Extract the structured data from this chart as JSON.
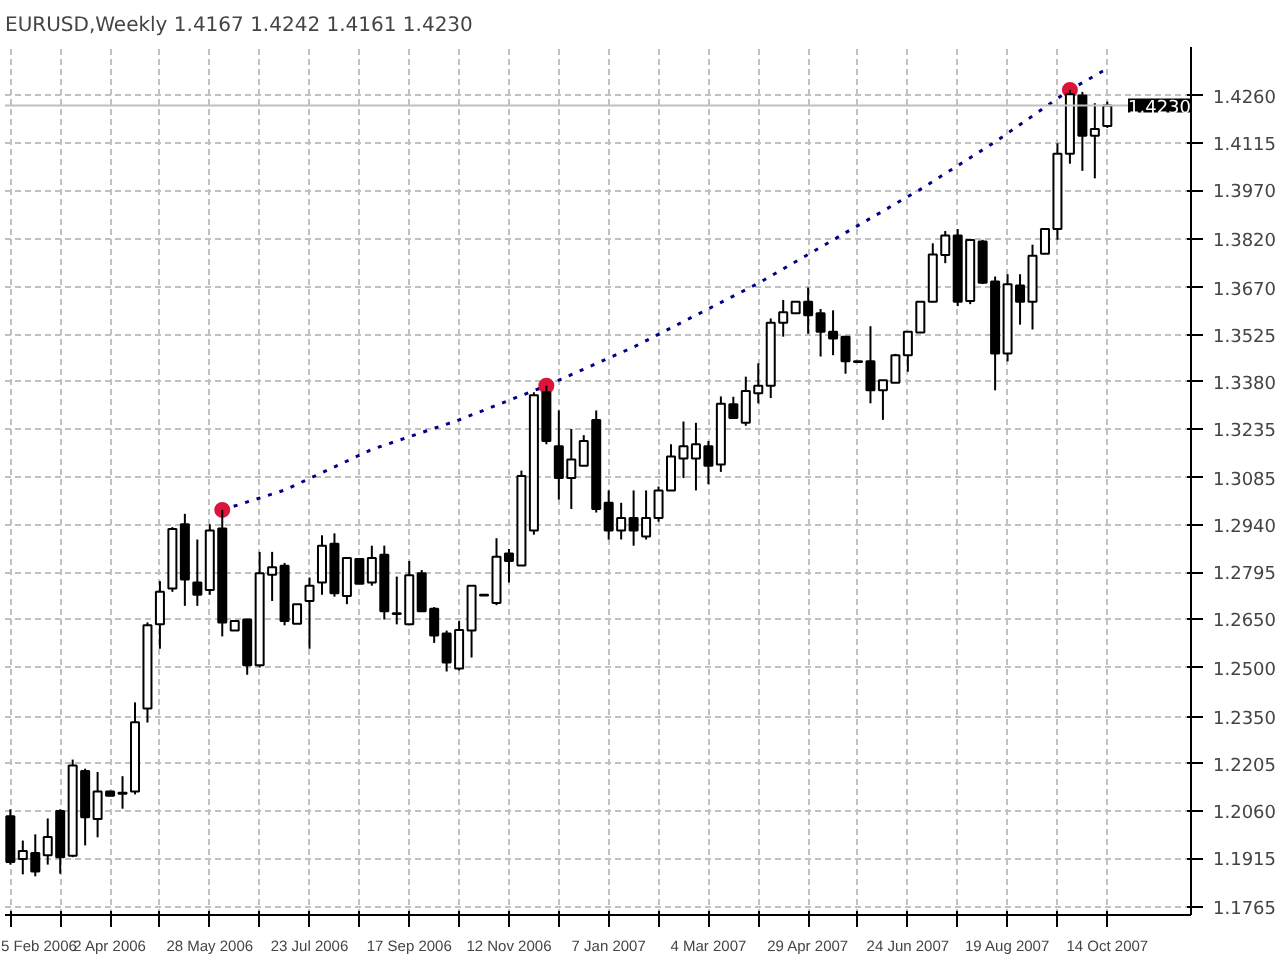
{
  "chart_data": {
    "type": "candlestick",
    "title": "EURUSD,Weekly  1.4167 1.4242 1.4161 1.4230",
    "xlim": [
      "2006-02-02",
      "2007-11-30"
    ],
    "xticks": [
      {
        "value": "2006-02-05",
        "label": "5 Feb 2006"
      },
      {
        "value": "2006-03-05",
        "label": null
      },
      {
        "value": "2006-04-02",
        "label": "2 Apr 2006"
      },
      {
        "value": "2006-04-30",
        "label": null
      },
      {
        "value": "2006-05-28",
        "label": "28 May 2006"
      },
      {
        "value": "2006-06-25",
        "label": null
      },
      {
        "value": "2006-07-23",
        "label": "23 Jul 2006"
      },
      {
        "value": "2006-08-20",
        "label": null
      },
      {
        "value": "2006-09-17",
        "label": "17 Sep 2006"
      },
      {
        "value": "2006-10-15",
        "label": null
      },
      {
        "value": "2006-11-12",
        "label": "12 Nov 2006"
      },
      {
        "value": "2006-12-10",
        "label": null
      },
      {
        "value": "2007-01-07",
        "label": "7 Jan 2007"
      },
      {
        "value": "2007-02-04",
        "label": null
      },
      {
        "value": "2007-03-04",
        "label": "4 Mar 2007"
      },
      {
        "value": "2007-04-01",
        "label": null
      },
      {
        "value": "2007-04-29",
        "label": "29 Apr 2007"
      },
      {
        "value": "2007-05-27",
        "label": null
      },
      {
        "value": "2007-06-24",
        "label": "24 Jun 2007"
      },
      {
        "value": "2007-07-22",
        "label": null
      },
      {
        "value": "2007-08-19",
        "label": "19 Aug 2007"
      },
      {
        "value": "2007-09-16",
        "label": null
      },
      {
        "value": "2007-10-14",
        "label": "14 Oct 2007"
      }
    ],
    "ylim": [
      1.174,
      1.441
    ],
    "yticks": [
      1.1765,
      1.1915,
      {
        "value": 1.206,
        "label": "1.2060"
      },
      1.2205,
      {
        "value": 1.235,
        "label": "1.2350"
      },
      {
        "value": 1.25,
        "label": "1.2500"
      },
      {
        "value": 1.265,
        "label": "1.2650"
      },
      1.2795,
      {
        "value": 1.294,
        "label": "1.2940"
      },
      1.3085,
      1.3235,
      {
        "value": 1.338,
        "label": "1.3380"
      },
      1.3525,
      {
        "value": 1.367,
        "label": "1.3670"
      },
      {
        "value": 1.382,
        "label": "1.3820"
      },
      {
        "value": 1.397,
        "label": "1.3970"
      },
      1.4115,
      {
        "value": 1.426,
        "label": "1.4260"
      }
    ],
    "grid": true,
    "ref_lines": [
      {
        "axis": "y",
        "value": 1.423,
        "label": "1.4230",
        "color": "#c0c0c0"
      }
    ],
    "series": [
      {
        "type": "candlestick",
        "color": "#000000",
        "x": [
          "2006-02-05",
          "2006-02-12",
          "2006-02-19",
          "2006-02-26",
          "2006-03-05",
          "2006-03-12",
          "2006-03-19",
          "2006-03-26",
          "2006-04-02",
          "2006-04-09",
          "2006-04-16",
          "2006-04-23",
          "2006-04-30",
          "2006-05-07",
          "2006-05-14",
          "2006-05-21",
          "2006-05-28",
          "2006-06-04",
          "2006-06-11",
          "2006-06-18",
          "2006-06-25",
          "2006-07-02",
          "2006-07-09",
          "2006-07-16",
          "2006-07-23",
          "2006-07-30",
          "2006-08-06",
          "2006-08-13",
          "2006-08-20",
          "2006-08-27",
          "2006-09-03",
          "2006-09-10",
          "2006-09-17",
          "2006-09-24",
          "2006-10-01",
          "2006-10-08",
          "2006-10-15",
          "2006-10-22",
          "2006-10-29",
          "2006-11-05",
          "2006-11-12",
          "2006-11-19",
          "2006-11-26",
          "2006-12-03",
          "2006-12-10",
          "2006-12-17",
          "2006-12-24",
          "2006-12-31",
          "2007-01-07",
          "2007-01-14",
          "2007-01-21",
          "2007-01-28",
          "2007-02-04",
          "2007-02-11",
          "2007-02-18",
          "2007-02-25",
          "2007-03-04",
          "2007-03-11",
          "2007-03-18",
          "2007-03-25",
          "2007-04-01",
          "2007-04-08",
          "2007-04-15",
          "2007-04-22",
          "2007-04-29",
          "2007-05-06",
          "2007-05-13",
          "2007-05-20",
          "2007-05-27",
          "2007-06-03",
          "2007-06-10",
          "2007-06-17",
          "2007-06-24",
          "2007-07-01",
          "2007-07-08",
          "2007-07-15",
          "2007-07-22",
          "2007-07-29",
          "2007-08-05",
          "2007-08-12",
          "2007-08-19",
          "2007-08-26",
          "2007-09-02",
          "2007-09-09",
          "2007-09-16",
          "2007-09-23",
          "2007-09-30",
          "2007-10-07",
          "2007-10-14"
        ],
        "ohlc": [
          [
            1.2044,
            1.2065,
            1.1895,
            1.1903
          ],
          [
            1.1912,
            1.1969,
            1.1865,
            1.1937
          ],
          [
            1.1931,
            1.1988,
            1.1859,
            1.1874
          ],
          [
            1.1924,
            1.2037,
            1.1895,
            1.198
          ],
          [
            1.206,
            1.2065,
            1.1867,
            1.1918
          ],
          [
            1.1922,
            1.2218,
            1.1918,
            1.22
          ],
          [
            1.2183,
            1.219,
            1.1954,
            1.2041
          ],
          [
            1.2035,
            1.218,
            1.1979,
            1.212
          ],
          [
            1.212,
            1.2122,
            1.2105,
            1.2107
          ],
          [
            1.2116,
            1.2167,
            1.2067,
            1.2113
          ],
          [
            1.212,
            1.2394,
            1.2111,
            1.2333
          ],
          [
            1.2375,
            1.264,
            1.2332,
            1.2631
          ],
          [
            1.2634,
            1.2767,
            1.2559,
            1.2734
          ],
          [
            1.2744,
            1.2933,
            1.2734,
            1.2927
          ],
          [
            1.2942,
            1.2974,
            1.2691,
            1.2772
          ],
          [
            1.2763,
            1.2895,
            1.2691,
            1.2725
          ],
          [
            1.274,
            1.2942,
            1.2725,
            1.2923
          ],
          [
            1.2929,
            1.2986,
            1.2597,
            1.264
          ],
          [
            1.2615,
            1.2644,
            1.2615,
            1.2644
          ],
          [
            1.2649,
            1.2649,
            1.2479,
            1.2508
          ],
          [
            1.2508,
            1.2857,
            1.2502,
            1.2791
          ],
          [
            1.2787,
            1.2857,
            1.2706,
            1.281
          ],
          [
            1.2814,
            1.2823,
            1.2631,
            1.2644
          ],
          [
            1.2636,
            1.2696,
            1.2636,
            1.2696
          ],
          [
            1.2706,
            1.2778,
            1.2559,
            1.2753
          ],
          [
            1.2763,
            1.2908,
            1.2725,
            1.2876
          ],
          [
            1.2882,
            1.2914,
            1.2719,
            1.273
          ],
          [
            1.2721,
            1.2838,
            1.2696,
            1.2838
          ],
          [
            1.2835,
            1.2835,
            1.2759,
            1.2759
          ],
          [
            1.2763,
            1.2876,
            1.2753,
            1.2838
          ],
          [
            1.2848,
            1.2876,
            1.2649,
            1.2674
          ],
          [
            1.2668,
            1.2781,
            1.2634,
            1.2666
          ],
          [
            1.2634,
            1.2829,
            1.2631,
            1.2785
          ],
          [
            1.2791,
            1.2801,
            1.2674,
            1.2674
          ],
          [
            1.2682,
            1.2687,
            1.2577,
            1.26
          ],
          [
            1.2606,
            1.2615,
            1.2489,
            1.2517
          ],
          [
            1.2498,
            1.2644,
            1.2492,
            1.2617
          ],
          [
            1.2615,
            1.2753,
            1.2532,
            1.2753
          ],
          [
            1.2725,
            1.2725,
            1.2723,
            1.2723
          ],
          [
            1.27,
            1.2899,
            1.2693,
            1.2842
          ],
          [
            1.2852,
            1.2866,
            1.2763,
            1.2829
          ],
          [
            1.2815,
            1.3107,
            1.2814,
            1.309
          ],
          [
            1.2923,
            1.3348,
            1.291,
            1.3339
          ],
          [
            1.3348,
            1.3368,
            1.3188,
            1.3198
          ],
          [
            1.3182,
            1.3292,
            1.3018,
            1.3084
          ],
          [
            1.3084,
            1.3235,
            1.2989,
            1.3141
          ],
          [
            1.3122,
            1.3216,
            1.3122,
            1.3198
          ],
          [
            1.3263,
            1.3292,
            1.2978,
            1.2989
          ],
          [
            1.3008,
            1.3046,
            1.2895,
            1.2923
          ],
          [
            1.2923,
            1.3008,
            1.2895,
            1.2961
          ],
          [
            1.2961,
            1.3046,
            1.2876,
            1.2923
          ],
          [
            1.2904,
            1.3046,
            1.2895,
            1.2961
          ],
          [
            1.2961,
            1.3058,
            1.295,
            1.3046
          ],
          [
            1.3046,
            1.3188,
            1.3046,
            1.315
          ],
          [
            1.3144,
            1.3258,
            1.3084,
            1.3182
          ],
          [
            1.3144,
            1.3254,
            1.3046,
            1.3188
          ],
          [
            1.3182,
            1.3198,
            1.3065,
            1.3122
          ],
          [
            1.3126,
            1.3335,
            1.3103,
            1.3313
          ],
          [
            1.3311,
            1.3334,
            1.3267,
            1.3269
          ],
          [
            1.3254,
            1.3396,
            1.3245,
            1.3352
          ],
          [
            1.3345,
            1.3437,
            1.3314,
            1.3368
          ],
          [
            1.3368,
            1.3575,
            1.333,
            1.3562
          ],
          [
            1.3562,
            1.3632,
            1.3519,
            1.3594
          ],
          [
            1.3591,
            1.3626,
            1.3591,
            1.3626
          ],
          [
            1.3626,
            1.367,
            1.3528,
            1.3585
          ],
          [
            1.3591,
            1.3604,
            1.3458,
            1.3534
          ],
          [
            1.3534,
            1.36,
            1.3462,
            1.3513
          ],
          [
            1.3519,
            1.3519,
            1.3405,
            1.3443
          ],
          [
            1.3443,
            1.3443,
            1.3441,
            1.3441
          ],
          [
            1.3443,
            1.3551,
            1.3314,
            1.3354
          ],
          [
            1.3354,
            1.3385,
            1.3263,
            1.3385
          ],
          [
            1.3377,
            1.3466,
            1.3377,
            1.3462
          ],
          [
            1.3462,
            1.3534,
            1.3411,
            1.3534
          ],
          [
            1.3532,
            1.3626,
            1.3532,
            1.3626
          ],
          [
            1.3626,
            1.3806,
            1.3625,
            1.3772
          ],
          [
            1.377,
            1.3844,
            1.3745,
            1.383
          ],
          [
            1.383,
            1.385,
            1.3613,
            1.3626
          ],
          [
            1.3629,
            1.3816,
            1.3619,
            1.3816
          ],
          [
            1.3812,
            1.3817,
            1.3681,
            1.3685
          ],
          [
            1.3689,
            1.3704,
            1.3354,
            1.3467
          ],
          [
            1.3467,
            1.3711,
            1.3443,
            1.368
          ],
          [
            1.3676,
            1.3711,
            1.3556,
            1.3626
          ],
          [
            1.3626,
            1.3802,
            1.3541,
            1.3768
          ],
          [
            1.3774,
            1.385,
            1.3774,
            1.385
          ],
          [
            1.385,
            1.4114,
            1.3817,
            1.4082
          ],
          [
            1.4082,
            1.4278,
            1.4051,
            1.4265
          ],
          [
            1.4261,
            1.4272,
            1.4029,
            1.4137
          ],
          [
            1.4137,
            1.4237,
            1.4006,
            1.4158
          ],
          [
            1.4167,
            1.4242,
            1.4161,
            1.423
          ]
        ]
      },
      {
        "type": "line",
        "color": "#00008b",
        "line_style": "dotted",
        "x": [
          "2006-06-04",
          "2006-07-09",
          "2006-08-27",
          "2006-10-15",
          "2006-12-03",
          "2007-01-21",
          "2007-04-01",
          "2007-07-01",
          "2007-08-12",
          "2007-09-23",
          "2007-10-14"
        ],
        "values": [
          1.2986,
          1.3047,
          1.3172,
          1.3263,
          1.3368,
          1.3487,
          1.3683,
          1.3972,
          1.4118,
          1.4278,
          1.4344
        ]
      },
      {
        "type": "scatter",
        "color": "#dc143c",
        "marker": "circle",
        "x": [
          "2006-06-04",
          "2006-12-03",
          "2007-09-23"
        ],
        "values": [
          1.2986,
          1.3368,
          1.4278
        ]
      }
    ]
  }
}
